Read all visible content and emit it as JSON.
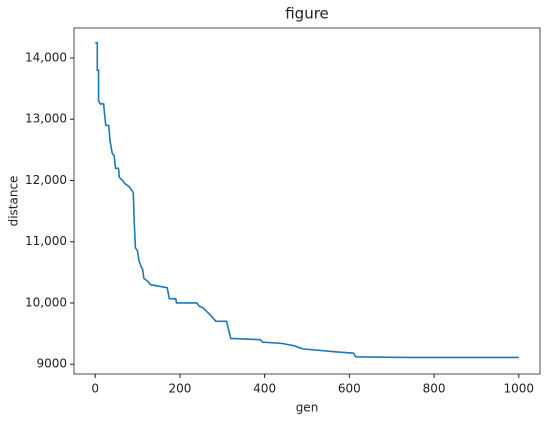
{
  "chart_data": {
    "type": "line",
    "title": "figure",
    "x_label": "gen",
    "y_label": "distance",
    "x": [
      0,
      5,
      5,
      8,
      8,
      12,
      20,
      22,
      25,
      32,
      35,
      40,
      45,
      48,
      55,
      57,
      65,
      70,
      80,
      85,
      90,
      92,
      95,
      100,
      103,
      108,
      112,
      115,
      125,
      130,
      145,
      170,
      175,
      190,
      192,
      240,
      245,
      255,
      265,
      275,
      285,
      310,
      320,
      390,
      395,
      440,
      470,
      490,
      570,
      610,
      615,
      740,
      1000
    ],
    "values": [
      14250,
      14250,
      13800,
      13800,
      13300,
      13250,
      13250,
      13100,
      12900,
      12900,
      12650,
      12450,
      12400,
      12200,
      12200,
      12050,
      12000,
      11950,
      11900,
      11850,
      11800,
      11350,
      10900,
      10850,
      10700,
      10600,
      10550,
      10400,
      10350,
      10300,
      10280,
      10250,
      10070,
      10070,
      10000,
      10000,
      9950,
      9920,
      9850,
      9780,
      9700,
      9700,
      9420,
      9400,
      9360,
      9340,
      9300,
      9250,
      9200,
      9180,
      9120,
      9110,
      9110
    ],
    "color": "#1f77b4",
    "xlim": [
      -50,
      1050
    ],
    "ylim": [
      8840,
      14490
    ],
    "xticks": [
      0,
      200,
      400,
      600,
      800,
      1000
    ],
    "yticks": [
      9000,
      {
        "value": 10000,
        "label": "10,000"
      },
      {
        "value": 11000,
        "label": "11,000"
      },
      {
        "value": 12000,
        "label": "12,000"
      },
      {
        "value": 13000,
        "label": "13,000"
      },
      {
        "value": 14000,
        "label": "14,000"
      }
    ],
    "grid": false
  }
}
